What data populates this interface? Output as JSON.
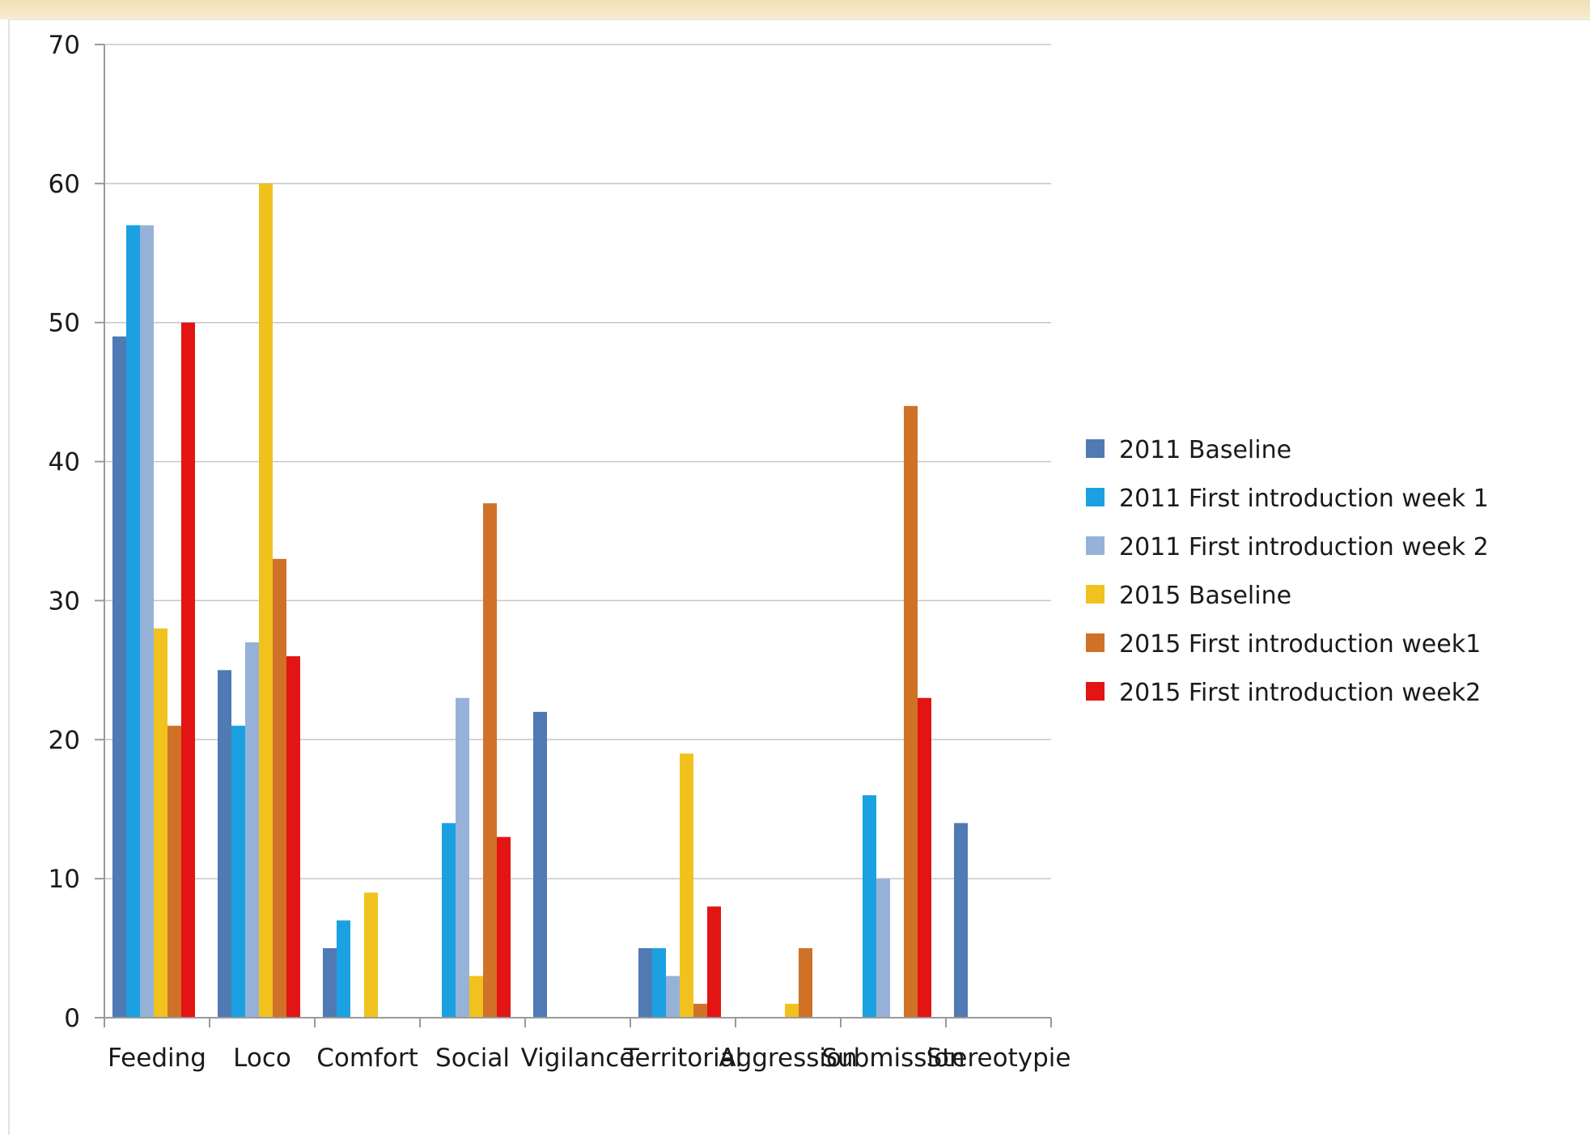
{
  "chart_data": {
    "type": "bar",
    "title": "",
    "xlabel": "",
    "ylabel": "",
    "ylim": [
      0,
      70
    ],
    "yticks": [
      0,
      10,
      20,
      30,
      40,
      50,
      60,
      70
    ],
    "grid": true,
    "legend_position": "right",
    "categories": [
      "Feeding",
      "Loco",
      "Comfort",
      "Social",
      "Vigilance",
      "Territorial",
      "Aggression",
      "Submission",
      "Stereotypie"
    ],
    "series": [
      {
        "name": "2011 Baseline",
        "color": "#4f7ab3",
        "values": [
          49,
          25,
          5,
          0,
          22,
          5,
          0,
          0,
          14
        ]
      },
      {
        "name": "2011 First introduction week 1",
        "color": "#1ba1e2",
        "values": [
          57,
          21,
          7,
          14,
          0,
          5,
          0,
          16,
          0
        ]
      },
      {
        "name": "2011 First introduction week 2",
        "color": "#97b2d8",
        "values": [
          57,
          27,
          0,
          23,
          0,
          3,
          0,
          10,
          0
        ]
      },
      {
        "name": "2015 Baseline",
        "color": "#f1c21d",
        "values": [
          28,
          60,
          9,
          3,
          0,
          19,
          1,
          0,
          0
        ]
      },
      {
        "name": "2015 First introduction week1",
        "color": "#cf7228",
        "values": [
          21,
          33,
          0,
          37,
          0,
          1,
          5,
          44,
          0
        ]
      },
      {
        "name": "2015 First introduction week2",
        "color": "#e31414",
        "values": [
          50,
          26,
          0,
          13,
          0,
          8,
          0,
          23,
          0
        ]
      }
    ]
  }
}
